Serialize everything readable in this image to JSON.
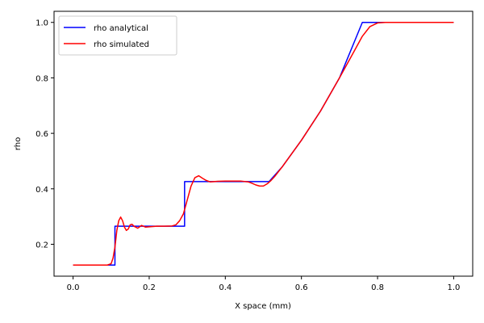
{
  "chart_data": {
    "type": "line",
    "title": "",
    "xlabel": "X space (mm)",
    "ylabel": "rho",
    "xlim": [
      -0.05,
      1.05
    ],
    "ylim": [
      0.085,
      1.04
    ],
    "xticks": [
      0.0,
      0.2,
      0.4,
      0.6,
      0.8,
      1.0
    ],
    "xtick_labels": [
      "0.0",
      "0.2",
      "0.4",
      "0.6",
      "0.8",
      "1.0"
    ],
    "yticks": [
      0.2,
      0.4,
      0.6,
      0.8,
      1.0
    ],
    "ytick_labels": [
      "0.2",
      "0.4",
      "0.6",
      "0.8",
      "1.0"
    ],
    "grid": false,
    "legend_position": "top-left",
    "series": [
      {
        "name": "rho analytical",
        "color": "#0000ff",
        "x": [
          0.0,
          0.11,
          0.11,
          0.293,
          0.293,
          0.515,
          0.55,
          0.6,
          0.65,
          0.7,
          0.76,
          1.0
        ],
        "y": [
          0.125,
          0.125,
          0.265,
          0.265,
          0.426,
          0.426,
          0.48,
          0.575,
          0.68,
          0.8,
          1.0,
          1.0
        ]
      },
      {
        "name": "rho simulated",
        "color": "#ff0000",
        "x": [
          0.0,
          0.09,
          0.1,
          0.105,
          0.11,
          0.115,
          0.12,
          0.125,
          0.13,
          0.135,
          0.14,
          0.145,
          0.15,
          0.155,
          0.16,
          0.17,
          0.18,
          0.19,
          0.2,
          0.22,
          0.24,
          0.26,
          0.27,
          0.28,
          0.29,
          0.3,
          0.31,
          0.32,
          0.33,
          0.34,
          0.35,
          0.36,
          0.38,
          0.4,
          0.42,
          0.44,
          0.46,
          0.47,
          0.48,
          0.49,
          0.5,
          0.51,
          0.52,
          0.53,
          0.55,
          0.6,
          0.65,
          0.7,
          0.74,
          0.76,
          0.78,
          0.8,
          0.82,
          1.0
        ],
        "y": [
          0.125,
          0.125,
          0.13,
          0.15,
          0.19,
          0.25,
          0.285,
          0.298,
          0.285,
          0.262,
          0.25,
          0.255,
          0.27,
          0.272,
          0.265,
          0.258,
          0.268,
          0.262,
          0.263,
          0.265,
          0.265,
          0.266,
          0.27,
          0.285,
          0.31,
          0.36,
          0.41,
          0.44,
          0.447,
          0.438,
          0.43,
          0.425,
          0.427,
          0.428,
          0.428,
          0.428,
          0.425,
          0.42,
          0.414,
          0.41,
          0.41,
          0.418,
          0.43,
          0.445,
          0.48,
          0.575,
          0.68,
          0.8,
          0.9,
          0.95,
          0.985,
          0.998,
          1.0,
          1.0
        ]
      }
    ]
  }
}
